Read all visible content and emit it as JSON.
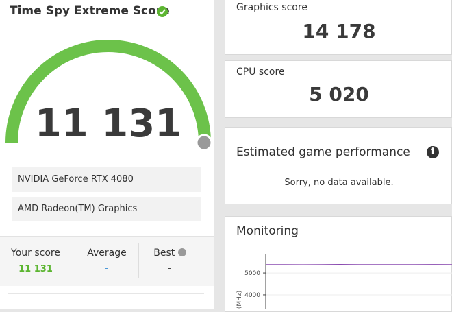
{
  "score_panel": {
    "title": "Time Spy Extreme Score",
    "score": "11 131",
    "hardware": [
      "NVIDIA GeForce RTX 4080",
      "AMD Radeon(TM) Graphics"
    ],
    "stats": [
      {
        "label": "Your score",
        "value": "11 131"
      },
      {
        "label": "Average",
        "value": "-"
      },
      {
        "label": "Best",
        "value": "-"
      }
    ]
  },
  "graphics_card": {
    "title": "Graphics score",
    "value": "14 178"
  },
  "cpu_card": {
    "title": "CPU score",
    "value": "5 020"
  },
  "game_performance": {
    "title": "Estimated game performance",
    "message": "Sorry, no data available."
  },
  "monitoring": {
    "title": "Monitoring",
    "y_label": "(MHz)",
    "ylim": [
      3340,
      5880
    ],
    "yticks": [
      5000,
      4000
    ],
    "values": [
      5380,
      5380,
      5375,
      5380,
      5385,
      5380,
      5380,
      5378,
      5380,
      5382,
      5380
    ]
  }
}
